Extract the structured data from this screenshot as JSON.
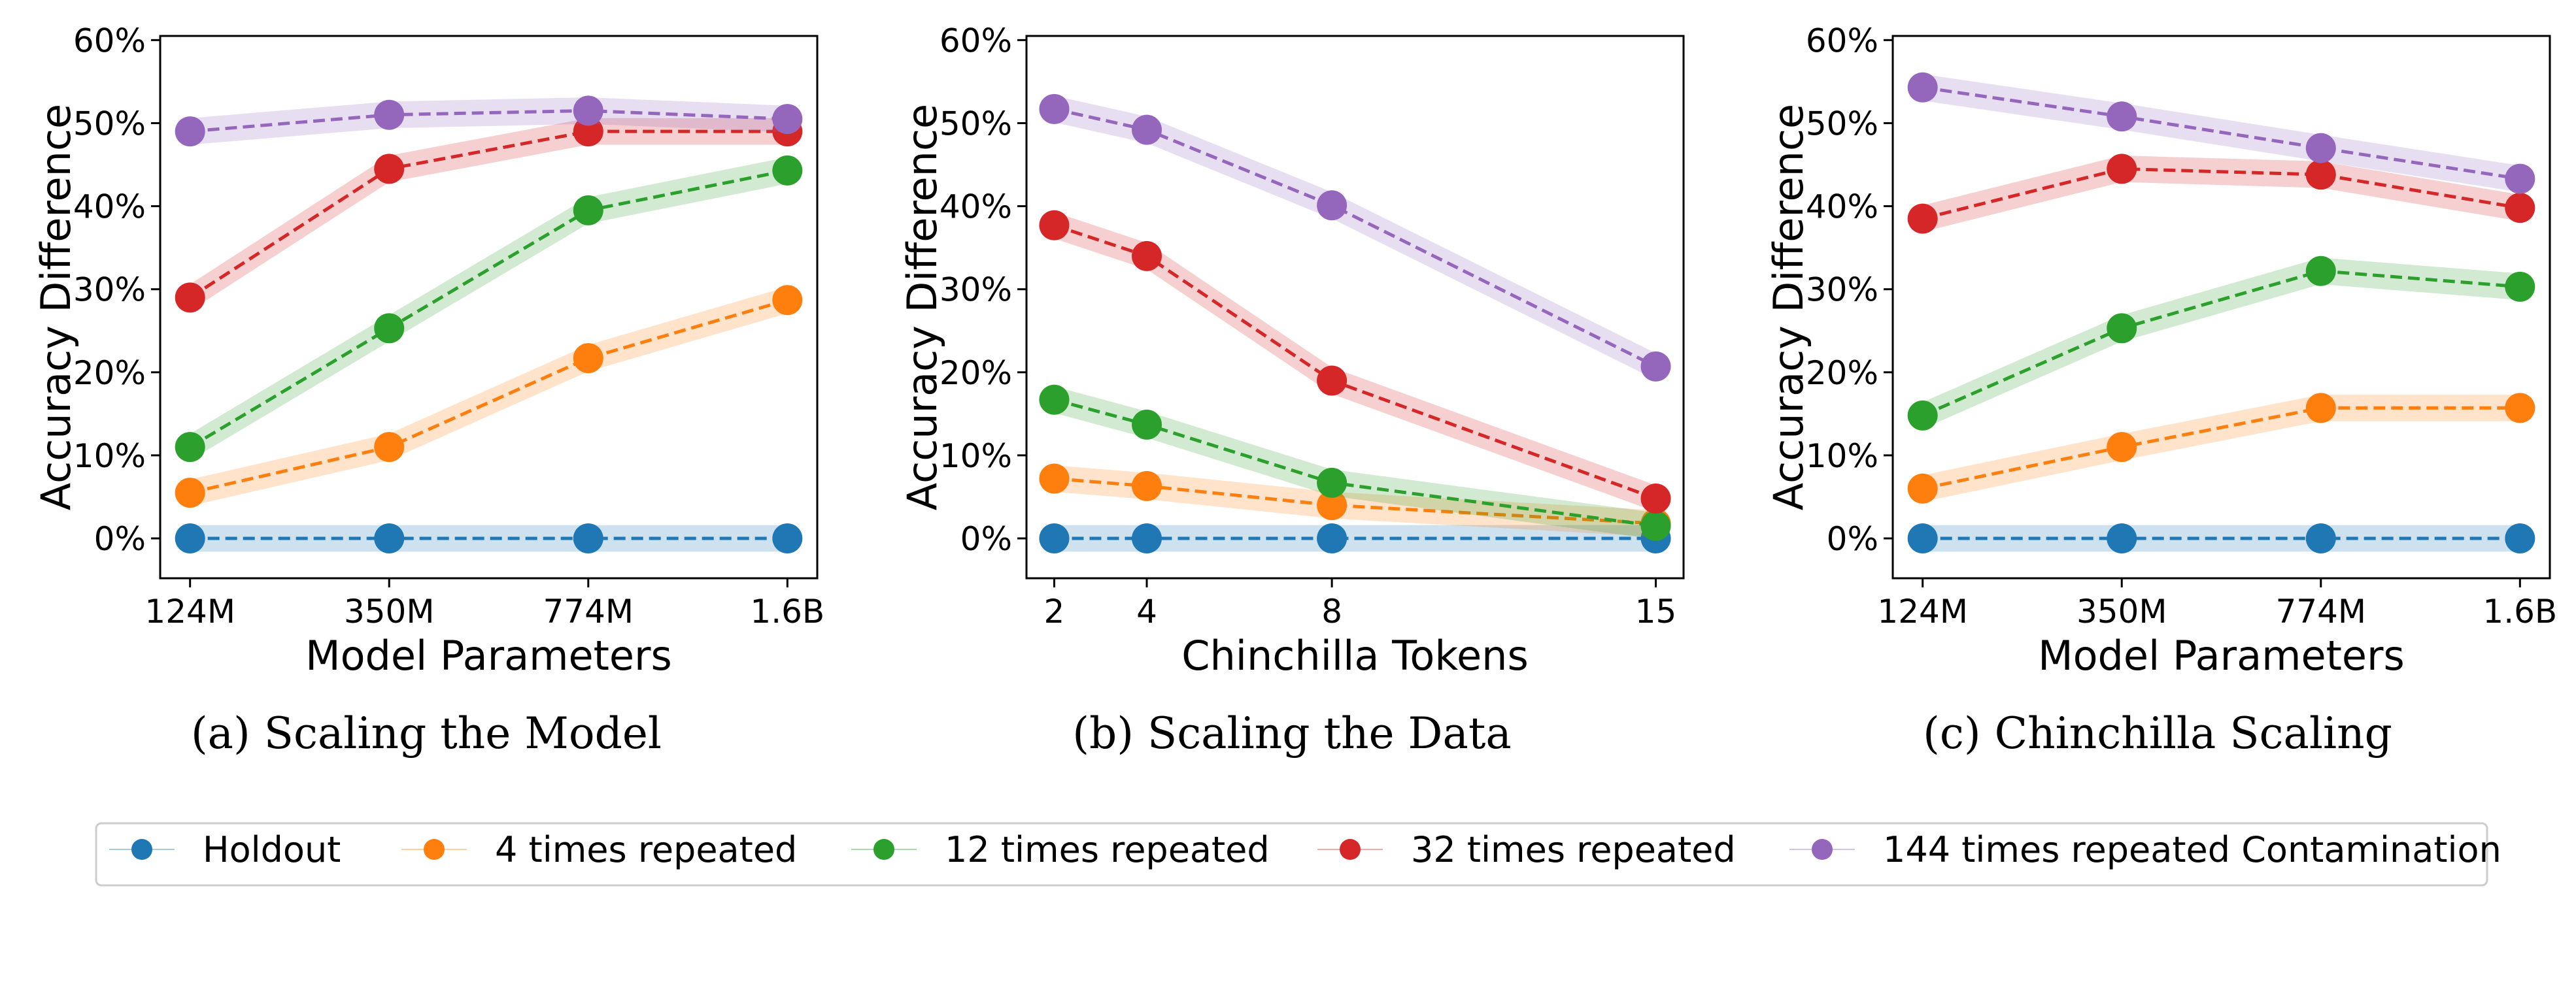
{
  "series_styles": [
    {
      "key": "holdout",
      "color": "#1f77b4"
    },
    {
      "key": "rep4",
      "color": "#ff7f0e"
    },
    {
      "key": "rep12",
      "color": "#2ca02c"
    },
    {
      "key": "rep32",
      "color": "#d62728"
    },
    {
      "key": "rep144",
      "color": "#9467bd"
    }
  ],
  "legend": {
    "entries": [
      "Holdout",
      "4 times repeated",
      "12 times repeated",
      "32 times repeated",
      "144 times repeated Contamination"
    ],
    "placement": "bottom-center"
  },
  "chart_data": [
    {
      "type": "line",
      "caption": "(a) Scaling the Model",
      "xlabel": "Model Parameters",
      "ylabel": "Accuracy Difference",
      "x_categories": [
        "124M",
        "350M",
        "774M",
        "1.6B"
      ],
      "yticks": [
        "0%",
        "10%",
        "20%",
        "30%",
        "40%",
        "50%",
        "60%"
      ],
      "ylim": [
        -4.8,
        60.5
      ],
      "grid": false,
      "series": [
        {
          "name": "Holdout",
          "values": [
            0,
            0,
            0,
            0
          ]
        },
        {
          "name": "4 times repeated",
          "values": [
            5.5,
            11,
            21.7,
            28.7
          ]
        },
        {
          "name": "12 times repeated",
          "values": [
            11,
            25.3,
            39.5,
            44.3
          ]
        },
        {
          "name": "32 times repeated",
          "values": [
            29,
            44.5,
            49,
            49
          ]
        },
        {
          "name": "144 times repeated Contamination",
          "values": [
            49,
            51,
            51.5,
            50.5
          ]
        }
      ]
    },
    {
      "type": "line",
      "caption": "(b) Scaling the Data",
      "xlabel": "Chinchilla Tokens",
      "ylabel": "Accuracy Difference",
      "x": [
        2,
        4,
        8,
        15
      ],
      "x_tick_labels": [
        "2",
        "4",
        "8",
        "15"
      ],
      "xlim": [
        1.4,
        15.6
      ],
      "yticks": [
        "0%",
        "10%",
        "20%",
        "30%",
        "40%",
        "50%",
        "60%"
      ],
      "ylim": [
        -4.8,
        60.5
      ],
      "grid": false,
      "series": [
        {
          "name": "Holdout",
          "values": [
            0,
            0,
            0,
            0
          ]
        },
        {
          "name": "4 times repeated",
          "values": [
            7.2,
            6.3,
            4,
            1.8
          ]
        },
        {
          "name": "12 times repeated",
          "values": [
            16.7,
            13.7,
            6.7,
            1.5
          ]
        },
        {
          "name": "32 times repeated",
          "values": [
            37.7,
            34,
            19,
            4.8
          ]
        },
        {
          "name": "144 times repeated Contamination",
          "values": [
            51.7,
            49.2,
            40.1,
            20.7
          ]
        }
      ]
    },
    {
      "type": "line",
      "caption": "(c) Chinchilla Scaling",
      "xlabel": "Model Parameters",
      "ylabel": "Accuracy Difference",
      "x_categories": [
        "124M",
        "350M",
        "774M",
        "1.6B"
      ],
      "yticks": [
        "0%",
        "10%",
        "20%",
        "30%",
        "40%",
        "50%",
        "60%"
      ],
      "ylim": [
        -4.8,
        60.5
      ],
      "grid": false,
      "series": [
        {
          "name": "Holdout",
          "values": [
            0,
            0,
            0,
            0
          ]
        },
        {
          "name": "4 times repeated",
          "values": [
            6,
            11,
            15.7,
            15.7
          ]
        },
        {
          "name": "12 times repeated",
          "values": [
            14.8,
            25.3,
            32.2,
            30.3
          ]
        },
        {
          "name": "32 times repeated",
          "values": [
            38.5,
            44.5,
            43.8,
            39.8
          ]
        },
        {
          "name": "144 times repeated Contamination",
          "values": [
            54.3,
            50.8,
            47,
            43.3
          ]
        }
      ]
    }
  ]
}
